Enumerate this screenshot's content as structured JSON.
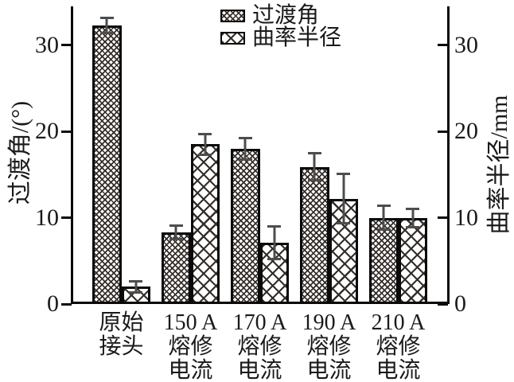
{
  "chart_data": {
    "type": "bar",
    "title": "",
    "categories": [
      "原始接头",
      "150 A 熔修电流",
      "170 A 熔修电流",
      "190 A 熔修电流",
      "210 A 熔修电流"
    ],
    "category_lines": [
      [
        "原始",
        "接头"
      ],
      [
        "150 A",
        "熔修",
        "电流"
      ],
      [
        "170 A",
        "熔修",
        "电流"
      ],
      [
        "190 A",
        "熔修",
        "电流"
      ],
      [
        "210 A",
        "熔修",
        "电流"
      ]
    ],
    "series": [
      {
        "name": "过渡角",
        "axis": "left",
        "pattern": "dense-hatch",
        "values": [
          32.3,
          8.3,
          18.0,
          15.9,
          10.0
        ],
        "errors": [
          1.0,
          0.9,
          1.4,
          1.7,
          1.5
        ]
      },
      {
        "name": "曲率半径",
        "axis": "right",
        "pattern": "cross-hatch",
        "values": [
          2.0,
          18.5,
          7.1,
          12.2,
          10.0
        ],
        "errors": [
          0.8,
          1.3,
          2.0,
          3.0,
          1.2
        ]
      }
    ],
    "left_axis": {
      "title": "过渡角/(°)",
      "ticks": [
        0,
        10,
        20,
        30
      ],
      "range": [
        0,
        34.5
      ]
    },
    "right_axis": {
      "title": "曲率半径/mm",
      "ticks": [
        0,
        10,
        20,
        30
      ],
      "range": [
        0,
        34.5
      ]
    },
    "legend": {
      "position": "top-center",
      "entries": [
        "过渡角",
        "曲率半径"
      ]
    },
    "grid": false,
    "colors": {
      "ink": "#1a1a1a",
      "hatch": "#342d29",
      "error_bar": "#4d4d4d",
      "background": "#ffffff"
    }
  }
}
